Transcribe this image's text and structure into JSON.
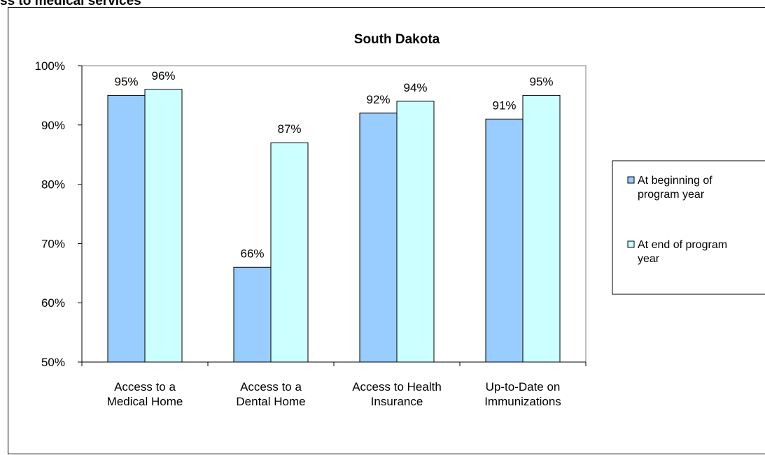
{
  "page": {
    "heading": "ss to medical services"
  },
  "chart_data": {
    "type": "bar",
    "title": "South Dakota",
    "categories": [
      [
        "Access to a",
        "Medical Home"
      ],
      [
        "Access to a",
        "Dental Home"
      ],
      [
        "Access to Health",
        "Insurance"
      ],
      [
        "Up-to-Date on",
        "Immunizations"
      ]
    ],
    "series": [
      {
        "name": "At beginning of program year",
        "legend_lines": [
          "At beginning of",
          "program year"
        ],
        "color": "#99ccff",
        "values": [
          95,
          66,
          92,
          91
        ]
      },
      {
        "name": "At end of program year",
        "legend_lines": [
          "At end of program",
          "year"
        ],
        "color": "#ccffff",
        "values": [
          96,
          87,
          94,
          95
        ]
      }
    ],
    "data_labels": [
      [
        "95%",
        "66%",
        "92%",
        "91%"
      ],
      [
        "96%",
        "87%",
        "94%",
        "95%"
      ]
    ],
    "y_ticks": [
      "50%",
      "60%",
      "70%",
      "80%",
      "90%",
      "100%"
    ],
    "ylim": [
      50,
      100
    ],
    "xlabel": "",
    "ylabel": "",
    "grid": false,
    "legend_position": "right"
  }
}
